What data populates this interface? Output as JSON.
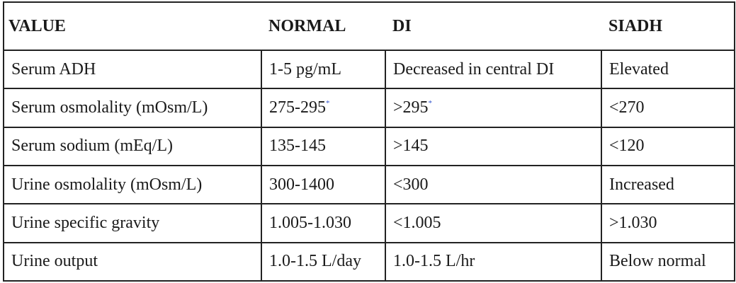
{
  "table": {
    "header": [
      "VALUE",
      "NORMAL",
      "DI",
      "SIADH"
    ],
    "rows": [
      [
        "Serum ADH",
        "1-5 pg/mL",
        "Decreased in central DI",
        "Elevated"
      ],
      [
        "Serum osmolality (mOsm/L)",
        {
          "text": "275-295",
          "note": "*"
        },
        {
          "text": ">295",
          "note": "*"
        },
        "<270"
      ],
      [
        "Serum sodium (mEq/L)",
        "135-145",
        ">145",
        "<120"
      ],
      [
        "Urine osmolality (mOsm/L)",
        "300-1400",
        "<300",
        "Increased"
      ],
      [
        "Urine specific gravity",
        "1.005-1.030",
        "<1.005",
        ">1.030"
      ],
      [
        "Urine output",
        "1.0-1.5 L/day",
        "1.0-1.5 L/hr",
        "Below normal"
      ]
    ]
  }
}
